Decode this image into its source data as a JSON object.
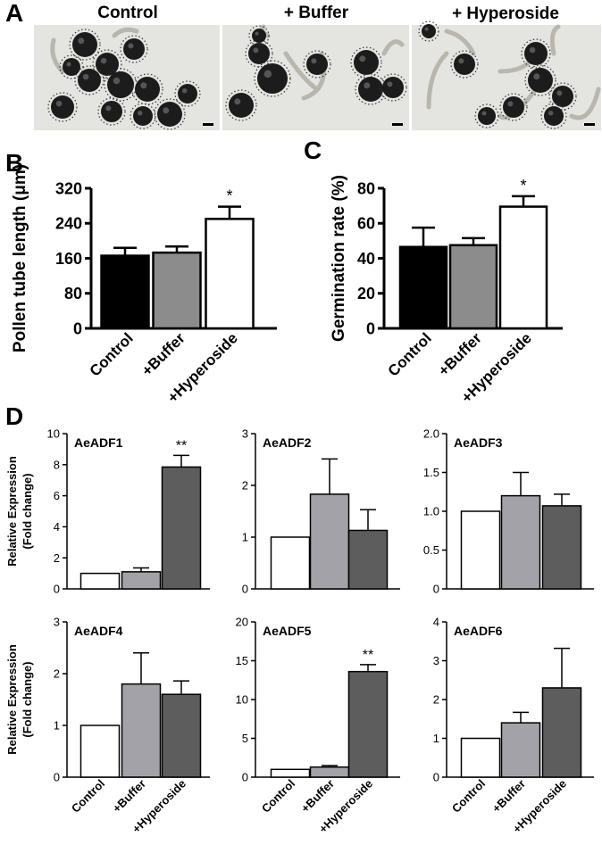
{
  "panel_letters": [
    "A",
    "B",
    "C",
    "D"
  ],
  "photos": {
    "labels": [
      "Control",
      "+ Buffer",
      "+ Hyperoside"
    ],
    "description_icon": "pollen-micrograph-icon"
  },
  "colors": {
    "control": "#000000",
    "buffer": "#8c8c8c",
    "hyperoside": "#ffffff",
    "d_control": "#ffffff",
    "d_buffer": "#a2a2a8",
    "d_hyperoside": "#5d5d5d"
  },
  "chart_data": [
    {
      "id": "B",
      "type": "bar",
      "categories": [
        "Control",
        "+Buffer",
        "+Hyperoside"
      ],
      "values": [
        166,
        173,
        250
      ],
      "errors": [
        18,
        14,
        28
      ],
      "ylabel": "Pollen tube length (μm)",
      "ylim": [
        0,
        320
      ],
      "ticks": [
        0,
        80,
        160,
        240,
        320
      ],
      "annotations": [
        "",
        "",
        "*"
      ]
    },
    {
      "id": "C",
      "type": "bar",
      "categories": [
        "Control",
        "+Buffer",
        "+Hyperoside"
      ],
      "values": [
        46.5,
        47.5,
        69.5
      ],
      "errors": [
        11,
        4,
        6
      ],
      "ylabel": "Germination rate (%)",
      "ylim": [
        0,
        80
      ],
      "ticks": [
        0,
        20,
        40,
        60,
        80
      ],
      "annotations": [
        "",
        "",
        "*"
      ]
    },
    {
      "id": "AeADF1",
      "type": "bar",
      "title": "AeADF1",
      "categories": [
        "Control",
        "+Buffer",
        "+Hyperoside"
      ],
      "values": [
        1.0,
        1.1,
        7.85
      ],
      "errors": [
        0,
        0.25,
        0.75
      ],
      "ylim": [
        0,
        10
      ],
      "ticks": [
        0,
        2,
        4,
        6,
        8,
        10
      ],
      "annotations": [
        "",
        "",
        "**"
      ],
      "ylabel": [
        "Relative Expression",
        "(Fold change)"
      ]
    },
    {
      "id": "AeADF2",
      "type": "bar",
      "title": "AeADF2",
      "categories": [
        "Control",
        "+Buffer",
        "+Hyperoside"
      ],
      "values": [
        1.0,
        1.83,
        1.13
      ],
      "errors": [
        0,
        0.68,
        0.4
      ],
      "ylim": [
        0,
        3
      ],
      "ticks": [
        0,
        1,
        2,
        3
      ],
      "annotations": [
        "",
        "",
        ""
      ]
    },
    {
      "id": "AeADF3",
      "type": "bar",
      "title": "AeADF3",
      "categories": [
        "Control",
        "+Buffer",
        "+Hyperoside"
      ],
      "values": [
        1.0,
        1.2,
        1.07
      ],
      "errors": [
        0,
        0.3,
        0.15
      ],
      "ylim": [
        0,
        2.0
      ],
      "ticks": [
        "0",
        "0.5",
        "1.0",
        "1.5",
        "2.0"
      ],
      "annotations": [
        "",
        "",
        ""
      ]
    },
    {
      "id": "AeADF4",
      "type": "bar",
      "title": "AeADF4",
      "categories": [
        "Control",
        "+Buffer",
        "+Hyperoside"
      ],
      "values": [
        1.0,
        1.8,
        1.6
      ],
      "errors": [
        0,
        0.6,
        0.26
      ],
      "ylim": [
        0,
        3
      ],
      "ticks": [
        0,
        1,
        2,
        3
      ],
      "annotations": [
        "",
        "",
        ""
      ],
      "ylabel": [
        "Relative Expression",
        "(Fold change)"
      ]
    },
    {
      "id": "AeADF5",
      "type": "bar",
      "title": "AeADF5",
      "categories": [
        "Control",
        "+Buffer",
        "+Hyperoside"
      ],
      "values": [
        1.0,
        1.3,
        13.6
      ],
      "errors": [
        0,
        0.2,
        0.9
      ],
      "ylim": [
        0,
        20
      ],
      "ticks": [
        0,
        5,
        10,
        15,
        20
      ],
      "annotations": [
        "",
        "",
        "**"
      ]
    },
    {
      "id": "AeADF6",
      "type": "bar",
      "title": "AeADF6",
      "categories": [
        "Control",
        "+Buffer",
        "+Hyperoside"
      ],
      "values": [
        1.0,
        1.4,
        2.3
      ],
      "errors": [
        0,
        0.27,
        1.02
      ],
      "ylim": [
        0,
        4
      ],
      "ticks": [
        0,
        1,
        2,
        3,
        4
      ],
      "annotations": [
        "",
        "",
        ""
      ]
    }
  ]
}
